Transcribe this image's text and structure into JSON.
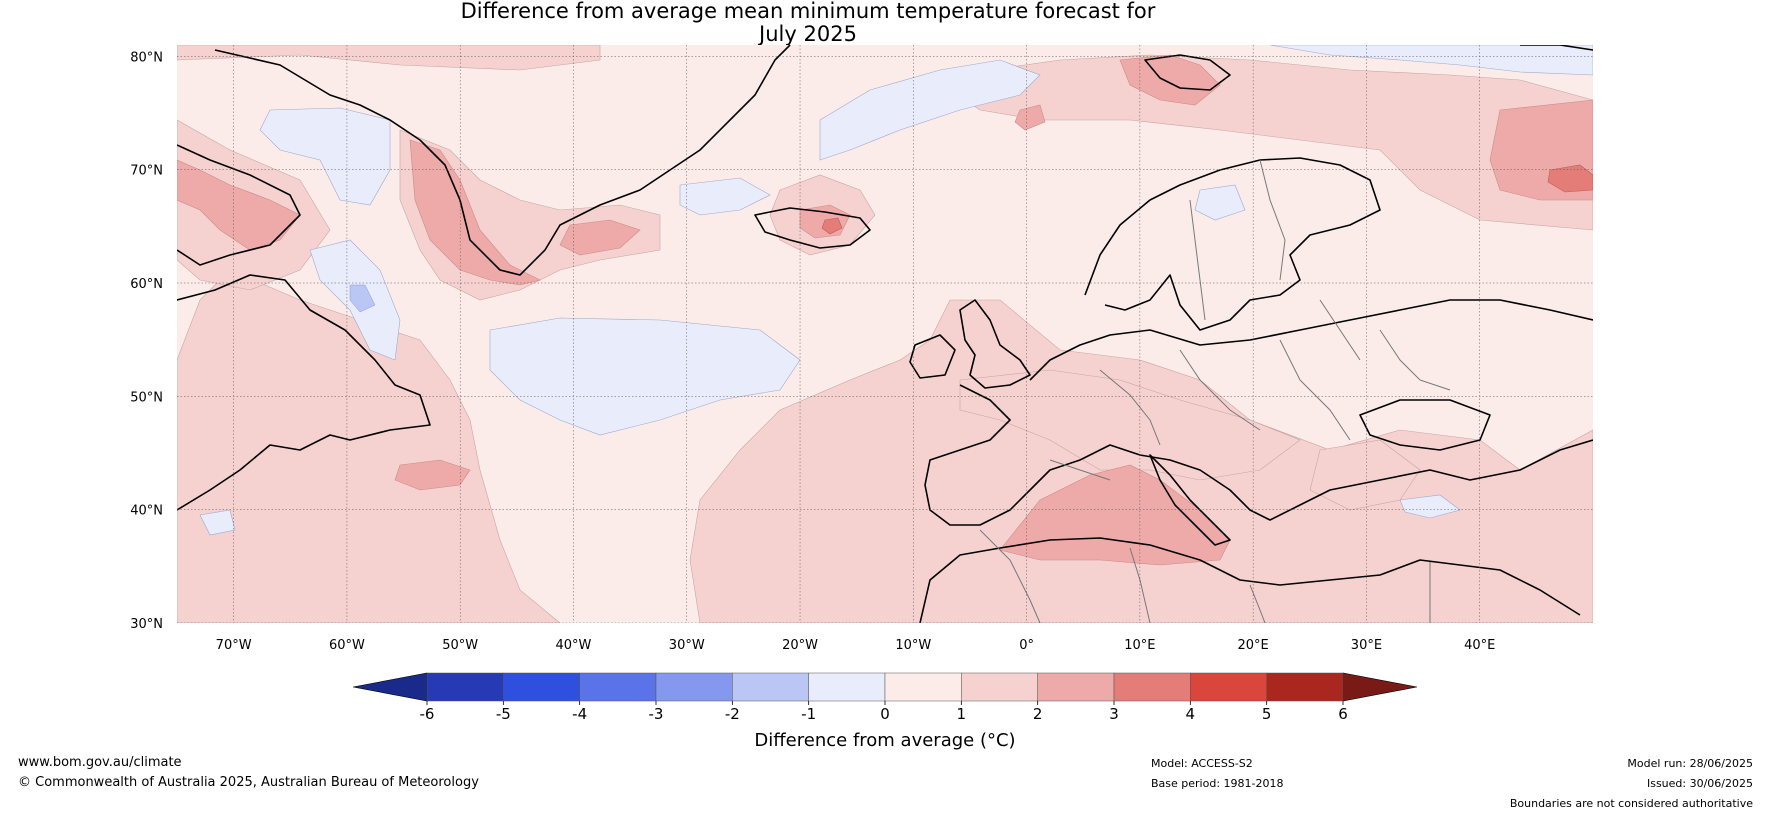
{
  "title": {
    "line1": "Difference from average mean minimum temperature forecast for",
    "line2": "July 2025"
  },
  "map": {
    "lat_labels": [
      "80°N",
      "70°N",
      "60°N",
      "50°N",
      "40°N",
      "30°N"
    ],
    "lon_labels": [
      "70°W",
      "60°W",
      "50°W",
      "40°W",
      "30°W",
      "20°W",
      "10°W",
      "0°",
      "10°E",
      "20°E",
      "30°E",
      "40°E"
    ],
    "lat_range": [
      30,
      81
    ],
    "lon_range": [
      -75,
      50
    ],
    "colors": {
      "anom_neg1_0": "#e8ecfb",
      "anom_0_1": "#fbecea",
      "anom_1_2": "#f5d2d0",
      "anom_2_3": "#eeaaa8",
      "anom_3_4": "#e47d78",
      "coast": "#000000",
      "border": "#777777",
      "grid": "#555555"
    }
  },
  "colorbar": {
    "ticks": [
      "-6",
      "-5",
      "-4",
      "-3",
      "-2",
      "-1",
      "0",
      "1",
      "2",
      "3",
      "4",
      "5",
      "6"
    ],
    "colors": [
      "#263ab5",
      "#2f4fdf",
      "#5a73e8",
      "#8398ee",
      "#bac6f4",
      "#e8ecfb",
      "#fbecea",
      "#f5d2d0",
      "#eeaaa8",
      "#e47d78",
      "#da463c",
      "#a9271f"
    ],
    "under_color": "#1a2a8a",
    "over_color": "#7a1a17",
    "label": "Difference from average (°C)"
  },
  "footer": {
    "website": "www.bom.gov.au/climate",
    "copyright": "© Commonwealth of Australia 2025, Australian Bureau of Meteorology",
    "model": "Model: ACCESS-S2",
    "base_period": "Base period: 1981-2018",
    "model_run": "Model run: 28/06/2025",
    "issued": "Issued: 30/06/2025",
    "disclaimer": "Boundaries are not considered authoritative"
  }
}
